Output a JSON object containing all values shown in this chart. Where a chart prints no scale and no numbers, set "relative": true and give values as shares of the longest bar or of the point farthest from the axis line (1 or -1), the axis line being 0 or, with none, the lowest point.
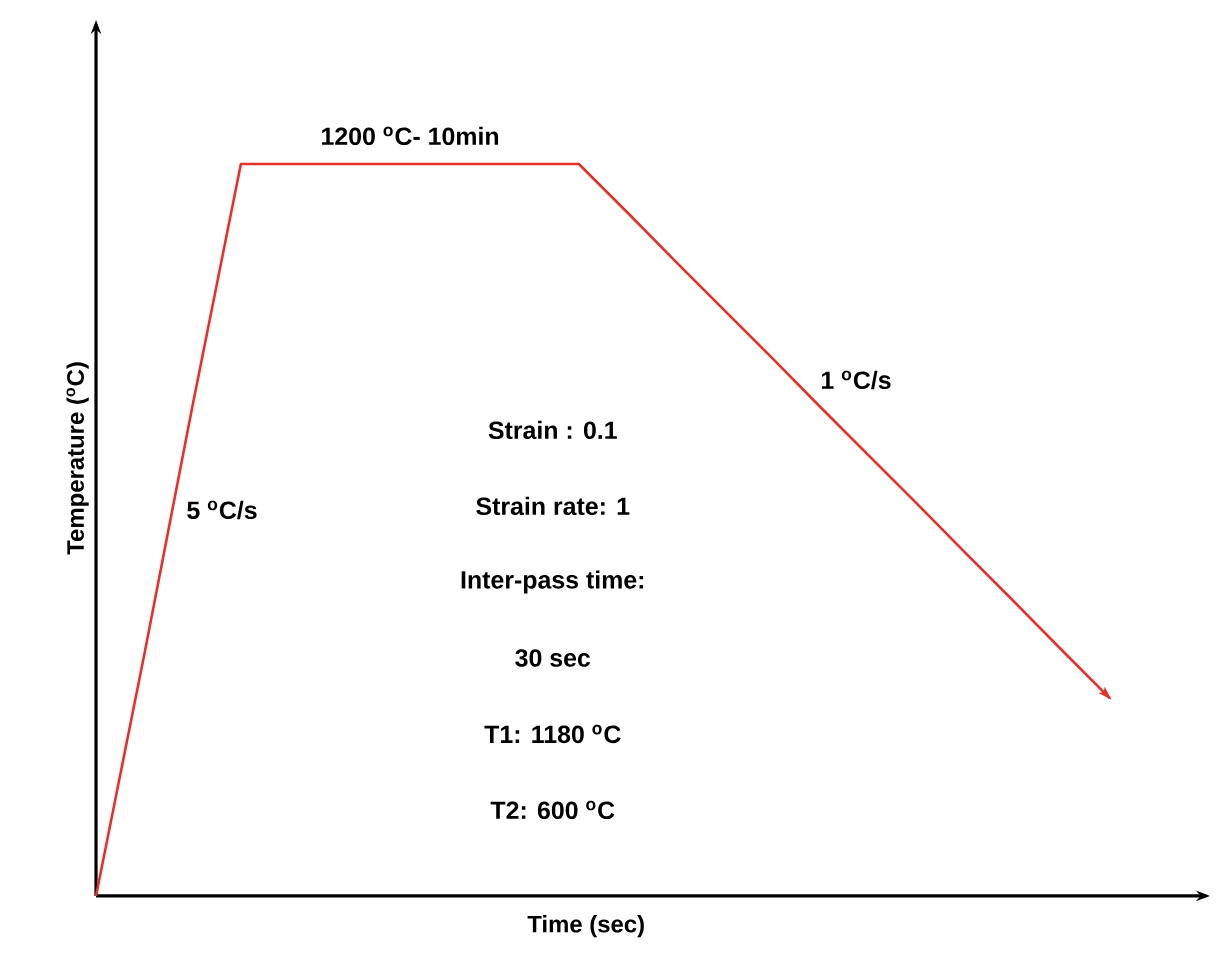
{
  "chart_data": {
    "type": "line",
    "relative": true,
    "xlabel": "Time (sec)",
    "ylabel": "Temperature ($^{o}$C)",
    "categories": [
      null,
      null,
      null,
      null,
      null,
      null,
      null,
      null,
      null,
      null,
      null,
      null,
      null,
      null,
      null,
      null,
      null,
      null,
      null,
      null,
      null,
      null
    ],
    "series": [
      {
        "color": "#e8302a",
        "values": [
          0,
          0.33,
          0.67,
          1,
          1,
          1,
          1,
          1,
          1,
          1,
          1,
          0.934,
          0.867,
          0.801,
          0.735,
          0.668,
          0.602,
          0.536,
          0.469,
          0.403,
          0.336,
          0.27
        ]
      }
    ],
    "annotations": [
      "1200 $^{o}$C- 10min",
      "5 $^{o}$C/s",
      "1 $^{o}$C/s",
      "Strain : 0.1",
      "Strain rate: 1",
      "Inter-pass time:",
      "30 sec",
      "T1: 1180 $^{o}$C",
      "T2: 600 $^{o}$C"
    ]
  }
}
